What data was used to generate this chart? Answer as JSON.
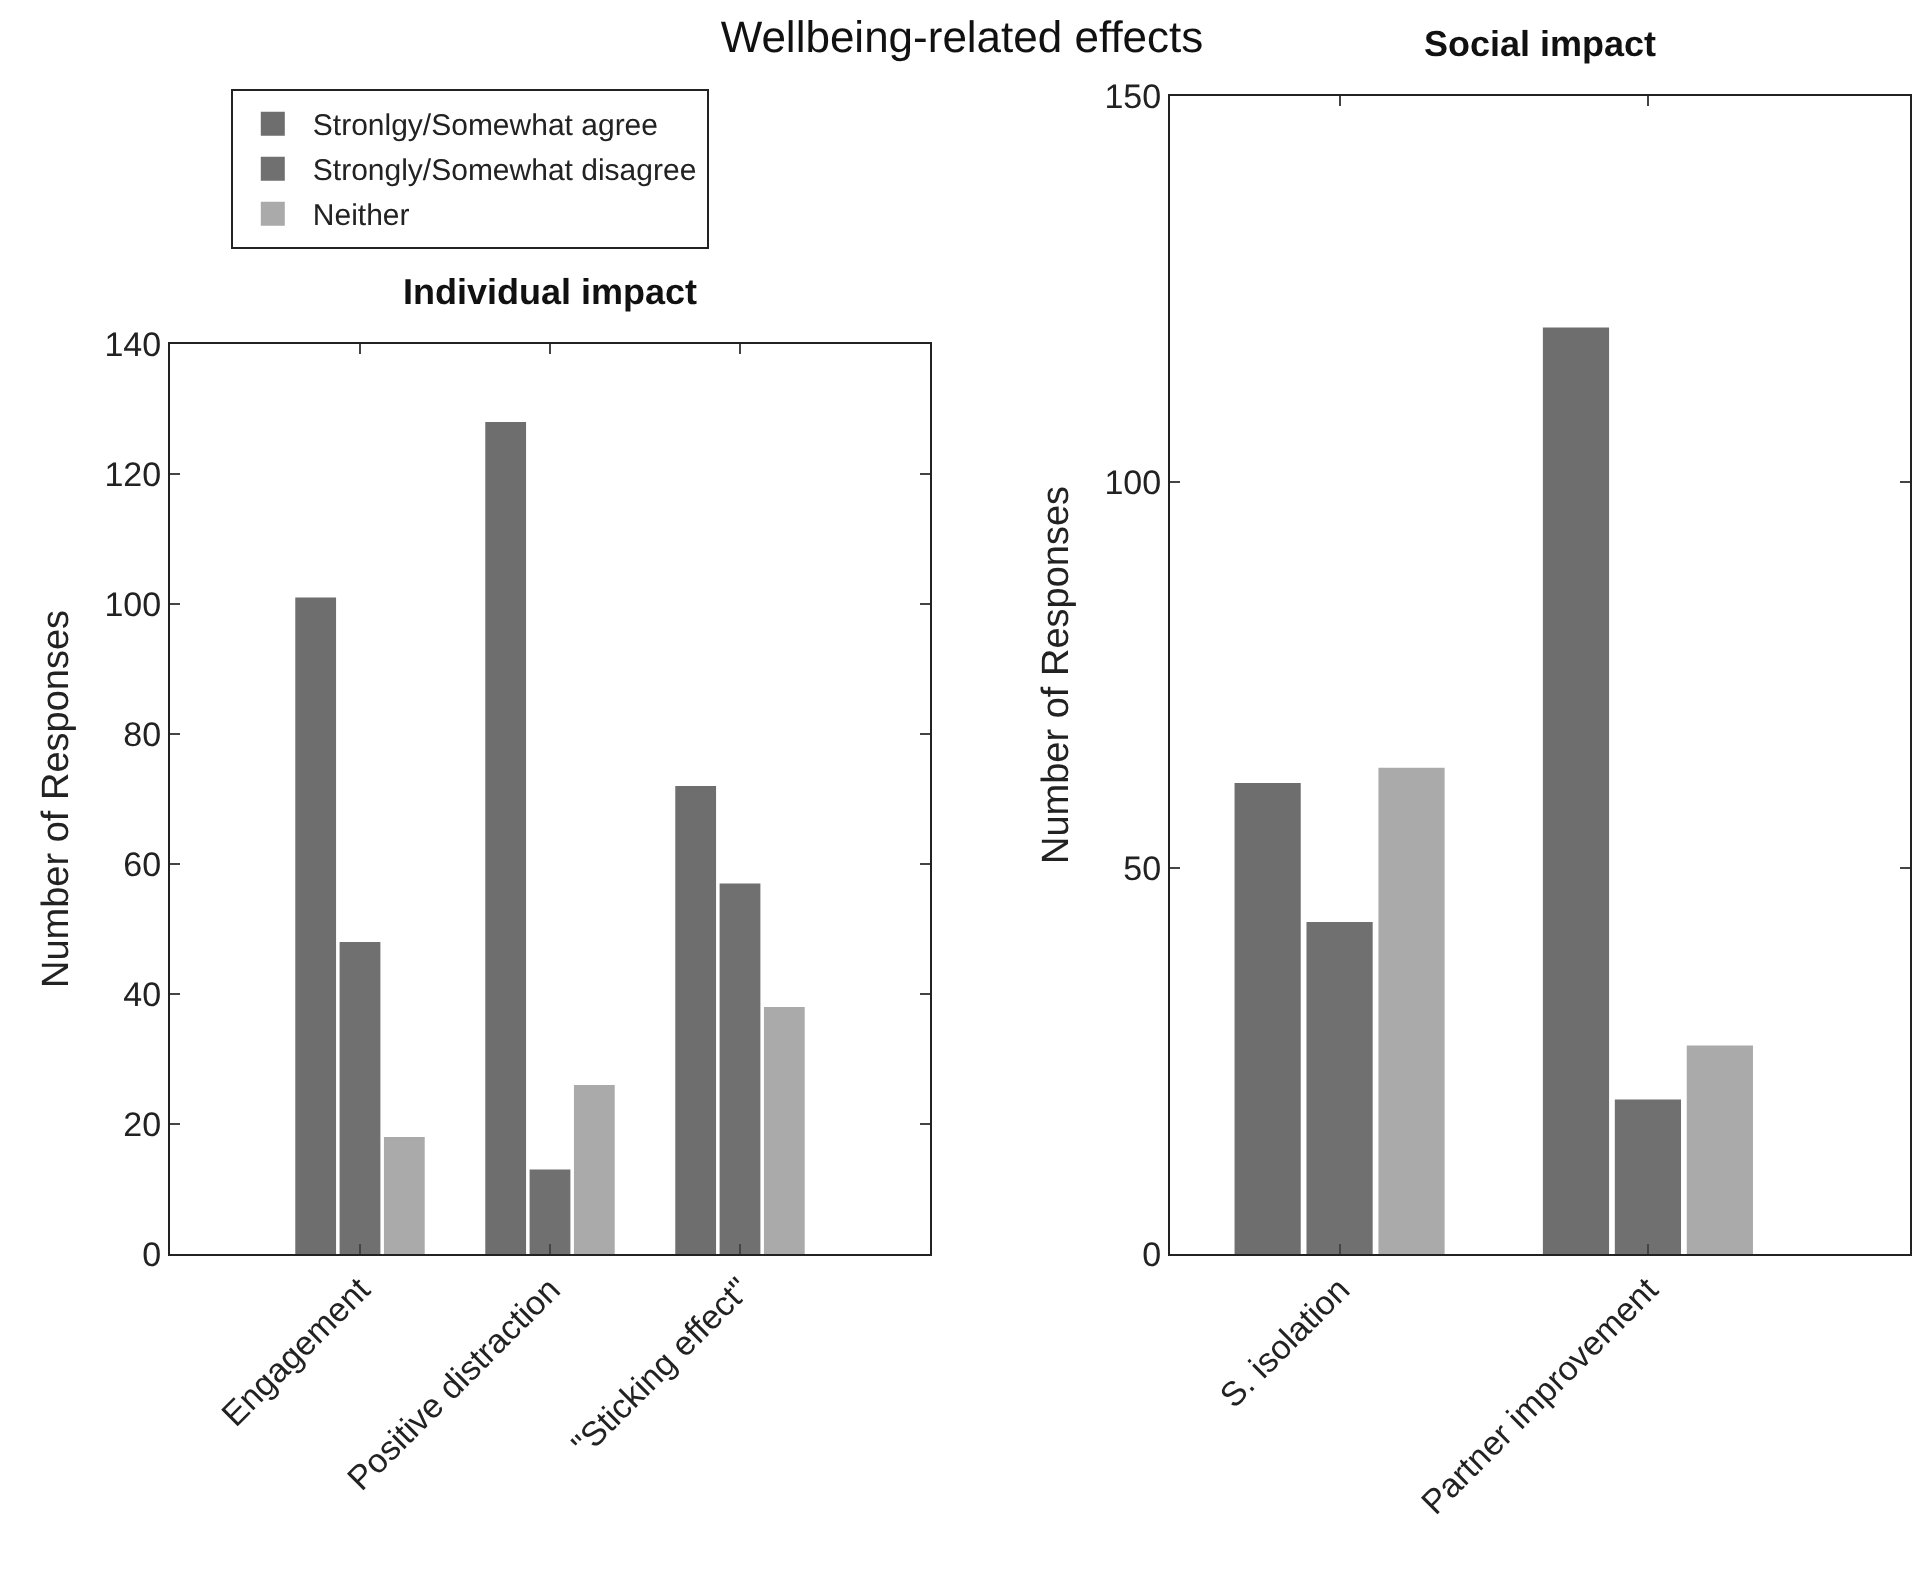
{
  "chart_data": [
    {
      "type": "bar",
      "title": "Individual impact",
      "ylabel": "Number of Responses",
      "annotations": [
        "Wellbeing-related effects"
      ],
      "categories": [
        "Engagement",
        "Positive distraction",
        "\"Sticking effect\""
      ],
      "series": [
        {
          "name": "Stronlgy/Somewhat agree",
          "color": "#6e6e6e",
          "values": [
            101,
            128,
            72
          ]
        },
        {
          "name": "Strongly/Somewhat disagree",
          "color": "#707070",
          "values": [
            48,
            13,
            57
          ]
        },
        {
          "name": "Neither",
          "color": "#aaaaaa",
          "values": [
            18,
            26,
            38
          ]
        }
      ],
      "ylim": [
        0,
        140
      ],
      "yticks": [
        0,
        20,
        40,
        60,
        80,
        100,
        120,
        140
      ],
      "grid": false,
      "legend": "top left"
    },
    {
      "type": "bar",
      "title": "Social impact",
      "ylabel": "Number of Responses",
      "categories": [
        "S. isolation",
        "Partner improvement"
      ],
      "series": [
        {
          "color": "#6e6e6e",
          "values": [
            61,
            120
          ]
        },
        {
          "color": "#707070",
          "values": [
            43,
            20
          ]
        },
        {
          "color": "#aaaaaa",
          "values": [
            63,
            27
          ]
        }
      ],
      "ylim": [
        0,
        150
      ],
      "yticks": [
        0,
        50,
        100,
        150
      ],
      "grid": false,
      "legend": false
    }
  ]
}
